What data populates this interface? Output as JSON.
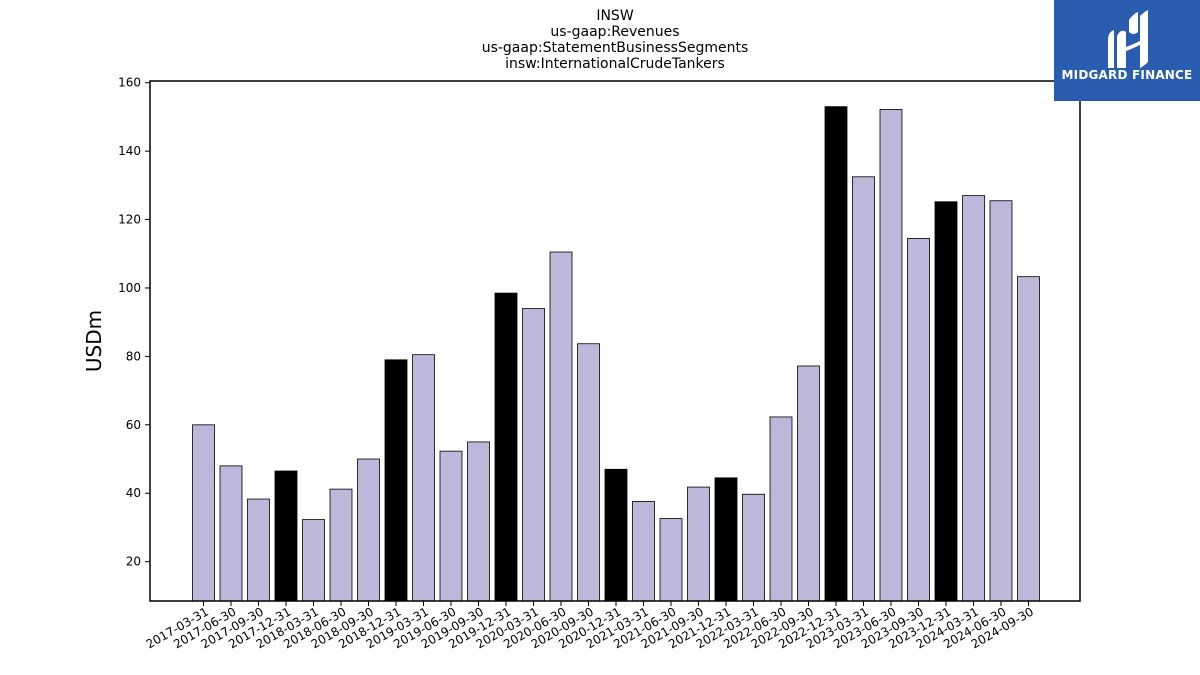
{
  "chart_data": {
    "type": "bar",
    "title_lines": [
      "INSW",
      "us-gaap:Revenues",
      "us-gaap:StatementBusinessSegments",
      "insw:InternationalCrudeTankers"
    ],
    "ylabel": "USDm",
    "xlabel": "",
    "ylim": [
      8.5,
      160.5
    ],
    "yticks": [
      20,
      40,
      60,
      80,
      100,
      120,
      140,
      160
    ],
    "grid": false,
    "colors": {
      "quarter": "#bcb8da",
      "year_end": "#000000",
      "edge": "#000000"
    },
    "categories": [
      "2017-03-31",
      "2017-06-30",
      "2017-09-30",
      "2017-12-31",
      "2018-03-31",
      "2018-06-30",
      "2018-09-30",
      "2018-12-31",
      "2019-03-31",
      "2019-06-30",
      "2019-09-30",
      "2019-12-31",
      "2020-03-31",
      "2020-06-30",
      "2020-09-30",
      "2020-12-31",
      "2021-03-31",
      "2021-06-30",
      "2021-09-30",
      "2021-12-31",
      "2022-03-31",
      "2022-06-30",
      "2022-09-30",
      "2022-12-31",
      "2023-03-31",
      "2023-06-30",
      "2023-09-30",
      "2023-12-31",
      "2024-03-31",
      "2024-06-30",
      "2024-09-30"
    ],
    "values": [
      60,
      48,
      38.3,
      46.5,
      32.3,
      41.2,
      50,
      79,
      80.5,
      52.3,
      55,
      98.5,
      94,
      110.5,
      83.7,
      47,
      37.6,
      32.6,
      41.8,
      44.5,
      39.7,
      62.3,
      77.2,
      153,
      132.5,
      152.2,
      114.5,
      125.2,
      127,
      125.5,
      103.3
    ],
    "year_end": [
      false,
      false,
      false,
      true,
      false,
      false,
      false,
      true,
      false,
      false,
      false,
      true,
      false,
      false,
      false,
      true,
      false,
      false,
      false,
      true,
      false,
      false,
      false,
      true,
      false,
      false,
      false,
      true,
      false,
      false,
      false
    ]
  },
  "logo": {
    "text": "MIDGARD FINANCE",
    "background": "#2a5db0"
  }
}
